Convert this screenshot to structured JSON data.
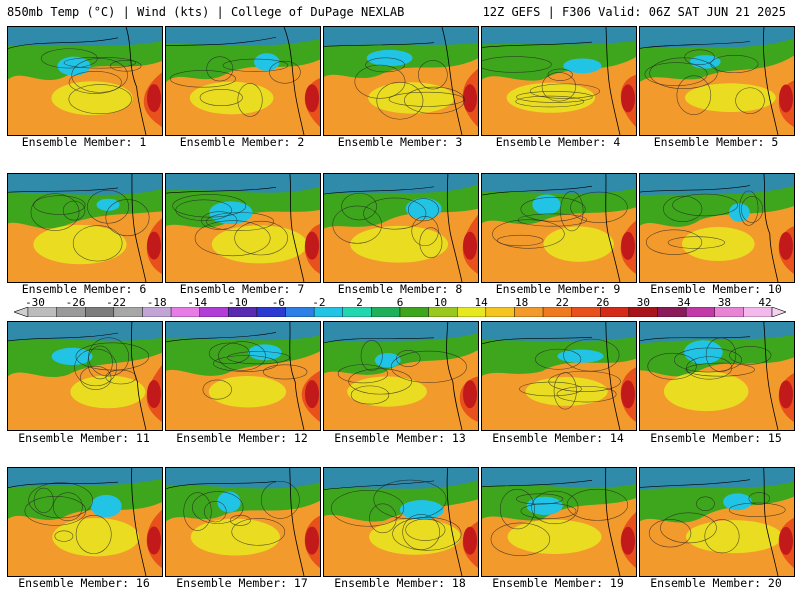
{
  "header": {
    "left_title": "850mb Temp (°C) | Wind (kts) | College of DuPage NEXLAB",
    "right_title": "12Z GEFS | F306 Valid: 06Z SAT JUN 21 2025"
  },
  "colorbar": {
    "tick_labels": [
      "-30",
      "-26",
      "-22",
      "-18",
      "-14",
      "-10",
      "-6",
      "-2",
      "2",
      "6",
      "10",
      "14",
      "18",
      "22",
      "26",
      "30",
      "34",
      "38",
      "42"
    ],
    "colors": [
      "#bcbcbc",
      "#9a9a9a",
      "#7d7d7d",
      "#a7a7a7",
      "#c2a5d6",
      "#e77ce6",
      "#b13cd6",
      "#5a2bb0",
      "#2b3ad0",
      "#2b7fe6",
      "#22c4e6",
      "#22d6b0",
      "#1fb05a",
      "#3ea61c",
      "#9ac81f",
      "#e8e820",
      "#f5c51f",
      "#f39a2c",
      "#f07a20",
      "#e8501c",
      "#d42a1a",
      "#a8141a",
      "#8a1a5a",
      "#c23aa8",
      "#e884d6",
      "#f3b9ec"
    ]
  },
  "members": [
    {
      "label": "Ensemble Member: 1"
    },
    {
      "label": "Ensemble Member: 2"
    },
    {
      "label": "Ensemble Member: 3"
    },
    {
      "label": "Ensemble Member: 4"
    },
    {
      "label": "Ensemble Member: 5"
    },
    {
      "label": "Ensemble Member: 6"
    },
    {
      "label": "Ensemble Member: 7"
    },
    {
      "label": "Ensemble Member: 8"
    },
    {
      "label": "Ensemble Member: 9"
    },
    {
      "label": "Ensemble Member: 10"
    },
    {
      "label": "Ensemble Member: 11"
    },
    {
      "label": "Ensemble Member: 12"
    },
    {
      "label": "Ensemble Member: 13"
    },
    {
      "label": "Ensemble Member: 14"
    },
    {
      "label": "Ensemble Member: 15"
    },
    {
      "label": "Ensemble Member: 16"
    },
    {
      "label": "Ensemble Member: 17"
    },
    {
      "label": "Ensemble Member: 18"
    },
    {
      "label": "Ensemble Member: 19"
    },
    {
      "label": "Ensemble Member: 20"
    }
  ],
  "map_colors": {
    "warm": "#f39a2c",
    "hot": "#e8501c",
    "very_hot": "#c21a1a",
    "mild": "#e8e820",
    "cool": "#3ea61c",
    "cold": "#22c4e6",
    "land_line": "#000000"
  }
}
